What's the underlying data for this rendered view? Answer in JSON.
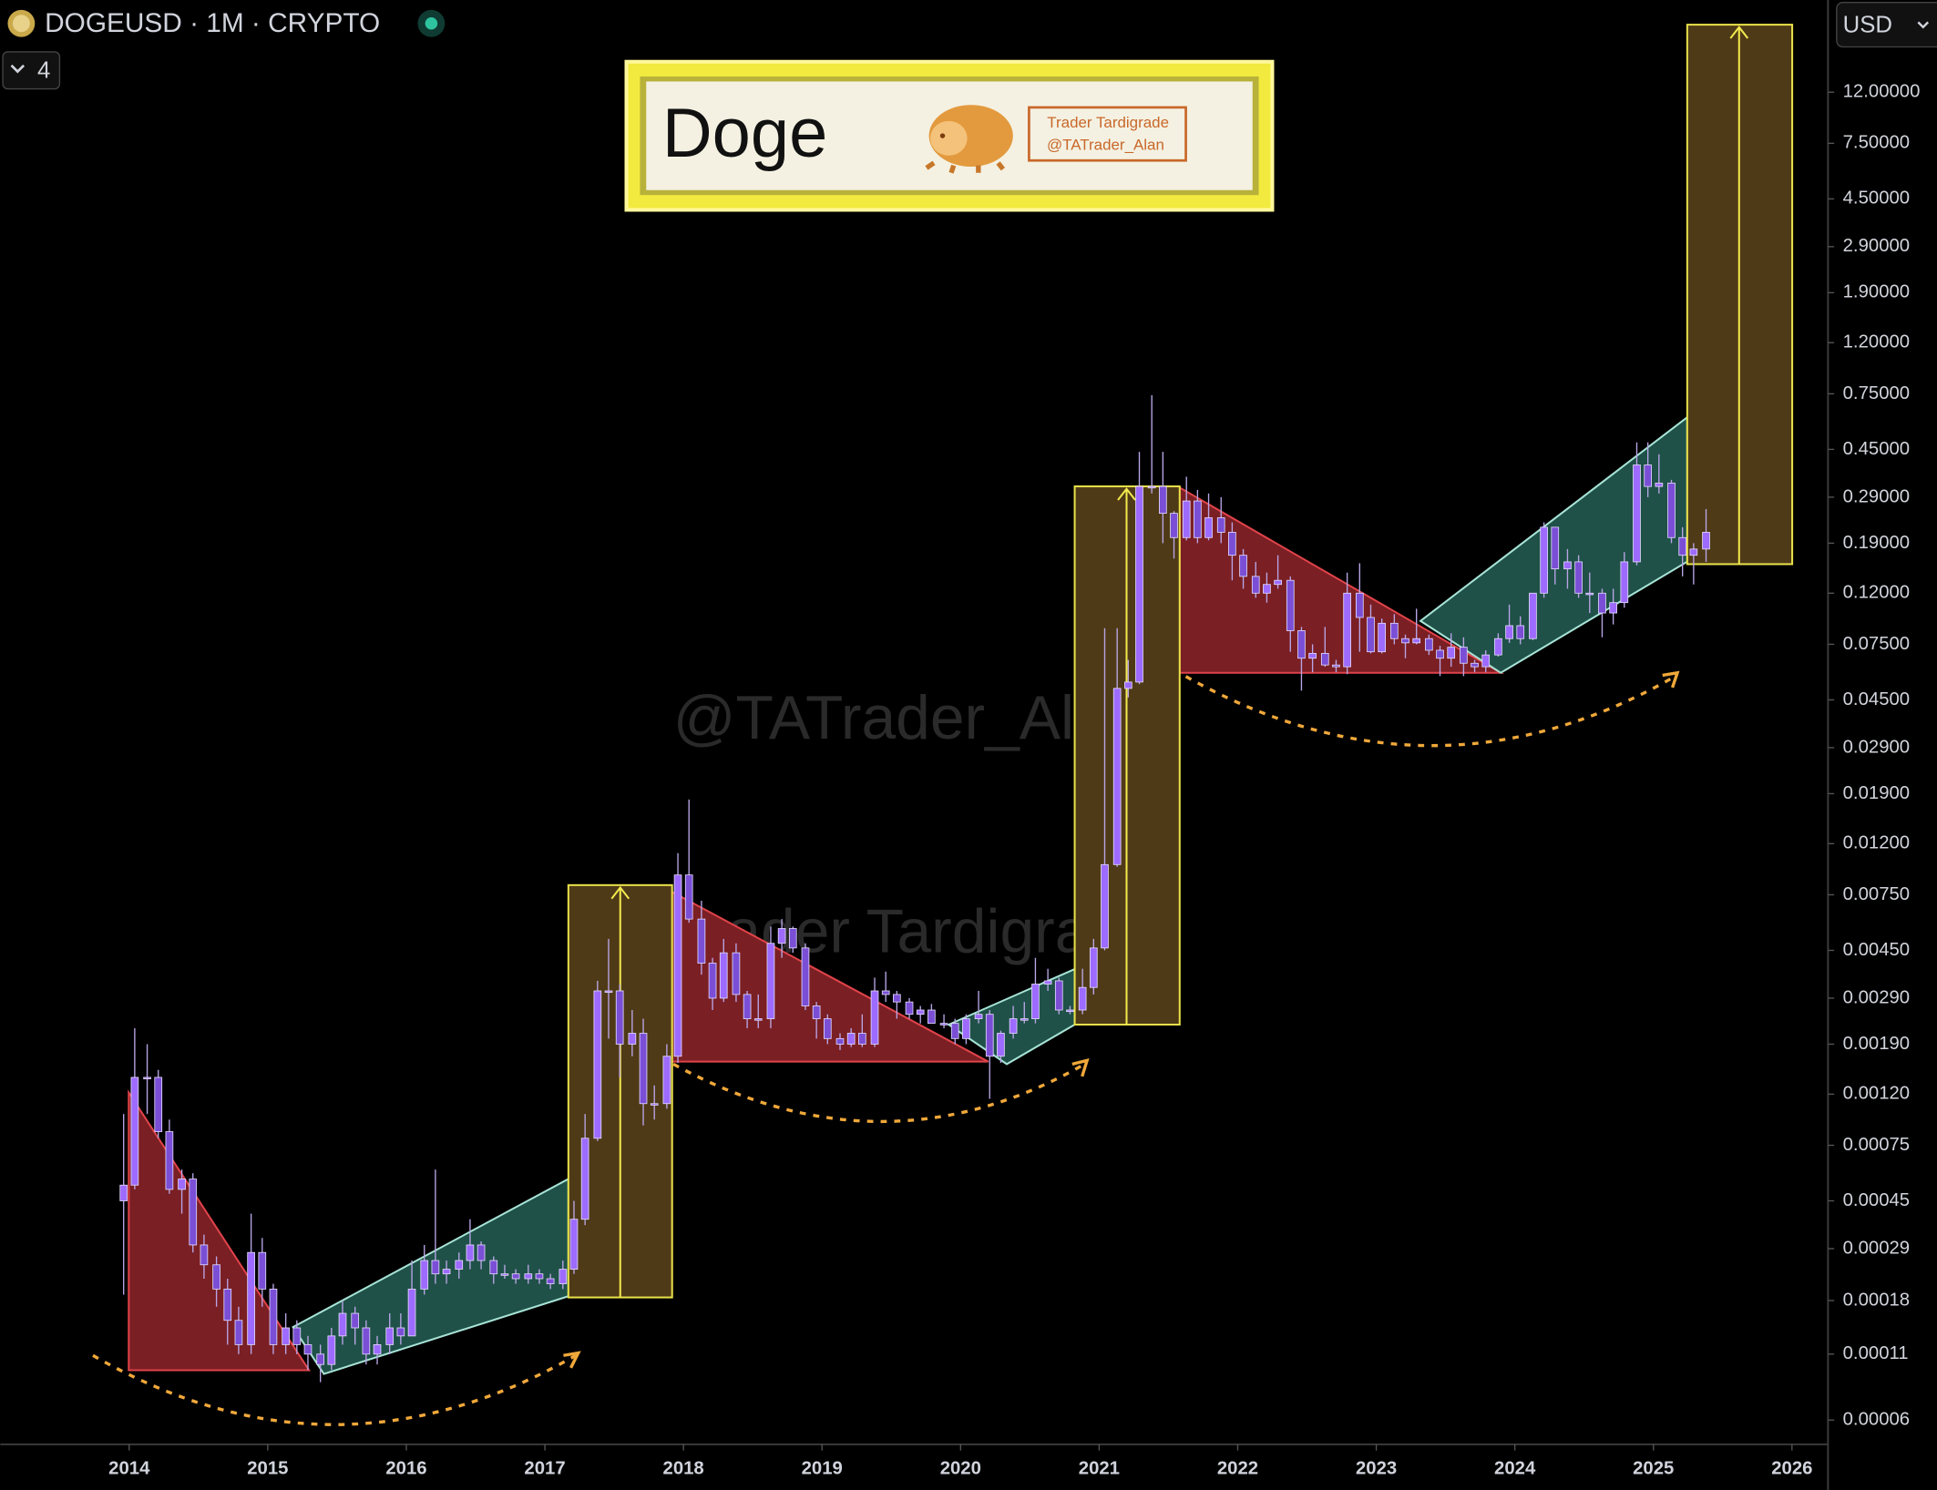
{
  "chart_data": {
    "type": "candlestick",
    "title": "DOGEUSD · 1M · CRYPTO",
    "indicator_count": 4,
    "currency": "USD",
    "log_scale": true,
    "color": "#9d6bff",
    "xlim": [
      2013.07,
      2026.26
    ],
    "xticks": [
      2014,
      2015,
      2016,
      2017,
      2018,
      2019,
      2020,
      2021,
      2022,
      2023,
      2024,
      2025,
      2026
    ],
    "ylim": [
      4.8e-05,
      28
    ],
    "yticks": [
      {
        "value": 12,
        "label": "12.00000"
      },
      {
        "value": 7.5,
        "label": "7.50000"
      },
      {
        "value": 4.5,
        "label": "4.50000"
      },
      {
        "value": 2.9,
        "label": "2.90000"
      },
      {
        "value": 1.9,
        "label": "1.90000"
      },
      {
        "value": 1.2,
        "label": "1.20000"
      },
      {
        "value": 0.75,
        "label": "0.75000"
      },
      {
        "value": 0.45,
        "label": "0.45000"
      },
      {
        "value": 0.29,
        "label": "0.29000"
      },
      {
        "value": 0.19,
        "label": "0.19000"
      },
      {
        "value": 0.12,
        "label": "0.12000"
      },
      {
        "value": 0.075,
        "label": "0.07500"
      },
      {
        "value": 0.045,
        "label": "0.04500"
      },
      {
        "value": 0.029,
        "label": "0.02900"
      },
      {
        "value": 0.019,
        "label": "0.01900"
      },
      {
        "value": 0.012,
        "label": "0.01200"
      },
      {
        "value": 0.0075,
        "label": "0.00750"
      },
      {
        "value": 0.0045,
        "label": "0.00450"
      },
      {
        "value": 0.0029,
        "label": "0.00290"
      },
      {
        "value": 0.0019,
        "label": "0.00190"
      },
      {
        "value": 0.0012,
        "label": "0.00120"
      },
      {
        "value": 0.00075,
        "label": "0.00075"
      },
      {
        "value": 0.00045,
        "label": "0.00045"
      },
      {
        "value": 0.00029,
        "label": "0.00029"
      },
      {
        "value": 0.00018,
        "label": "0.00018"
      },
      {
        "value": 0.00011,
        "label": "0.00011"
      },
      {
        "value": 6e-05,
        "label": "0.00006"
      }
    ],
    "x": [
      2013.96,
      2014.04,
      2014.13,
      2014.21,
      2014.29,
      2014.38,
      2014.46,
      2014.54,
      2014.63,
      2014.71,
      2014.79,
      2014.88,
      2014.96,
      2015.04,
      2015.13,
      2015.21,
      2015.29,
      2015.38,
      2015.46,
      2015.54,
      2015.63,
      2015.71,
      2015.79,
      2015.88,
      2015.96,
      2016.04,
      2016.13,
      2016.21,
      2016.29,
      2016.38,
      2016.46,
      2016.54,
      2016.63,
      2016.71,
      2016.79,
      2016.88,
      2016.96,
      2017.04,
      2017.13,
      2017.21,
      2017.29,
      2017.38,
      2017.46,
      2017.54,
      2017.63,
      2017.71,
      2017.79,
      2017.88,
      2017.96,
      2018.04,
      2018.13,
      2018.21,
      2018.29,
      2018.38,
      2018.46,
      2018.54,
      2018.63,
      2018.71,
      2018.79,
      2018.88,
      2018.96,
      2019.04,
      2019.13,
      2019.21,
      2019.29,
      2019.38,
      2019.46,
      2019.54,
      2019.63,
      2019.71,
      2019.79,
      2019.88,
      2019.96,
      2020.04,
      2020.13,
      2020.21,
      2020.29,
      2020.38,
      2020.46,
      2020.54,
      2020.63,
      2020.71,
      2020.79,
      2020.88,
      2020.96,
      2021.04,
      2021.13,
      2021.21,
      2021.29,
      2021.38,
      2021.46,
      2021.54,
      2021.63,
      2021.71,
      2021.79,
      2021.88,
      2021.96,
      2022.04,
      2022.13,
      2022.21,
      2022.29,
      2022.38,
      2022.46,
      2022.54,
      2022.63,
      2022.71,
      2022.79,
      2022.88,
      2022.96,
      2023.04,
      2023.13,
      2023.21,
      2023.29,
      2023.38,
      2023.46,
      2023.54,
      2023.63,
      2023.71,
      2023.79,
      2023.88,
      2023.96,
      2024.04,
      2024.13,
      2024.21,
      2024.29,
      2024.38,
      2024.46,
      2024.54,
      2024.63,
      2024.71,
      2024.79,
      2024.88,
      2024.96,
      2025.04,
      2025.13,
      2025.21,
      2025.29,
      2025.38
    ],
    "open": [
      0.00045,
      0.00052,
      0.0014,
      0.0014,
      0.00085,
      0.0005,
      0.00055,
      0.0003,
      0.00025,
      0.0002,
      0.00015,
      0.00012,
      0.00028,
      0.0002,
      0.00012,
      0.00014,
      0.00012,
      0.00011,
      0.0001,
      0.00013,
      0.00016,
      0.00014,
      0.00011,
      0.00012,
      0.00014,
      0.00013,
      0.0002,
      0.00026,
      0.00023,
      0.00024,
      0.00026,
      0.0003,
      0.00026,
      0.00023,
      0.00023,
      0.00022,
      0.00023,
      0.00022,
      0.00021,
      0.00024,
      0.00038,
      0.0008,
      0.0031,
      0.0031,
      0.0019,
      0.0021,
      0.0011,
      0.0011,
      0.0017,
      0.009,
      0.006,
      0.004,
      0.0029,
      0.0044,
      0.003,
      0.0024,
      0.0024,
      0.0048,
      0.0055,
      0.0046,
      0.0027,
      0.0024,
      0.002,
      0.0019,
      0.0021,
      0.0019,
      0.0031,
      0.003,
      0.0028,
      0.0025,
      0.0026,
      0.0023,
      0.0023,
      0.002,
      0.0024,
      0.0025,
      0.0017,
      0.0021,
      0.0024,
      0.0024,
      0.0033,
      0.0034,
      0.0026,
      0.0026,
      0.0032,
      0.0046,
      0.0099,
      0.05,
      0.053,
      0.32,
      0.32,
      0.25,
      0.2,
      0.28,
      0.2,
      0.24,
      0.21,
      0.17,
      0.14,
      0.12,
      0.13,
      0.135,
      0.085,
      0.066,
      0.069,
      0.062,
      0.061,
      0.12,
      0.096,
      0.07,
      0.091,
      0.079,
      0.076,
      0.079,
      0.071,
      0.066,
      0.073,
      0.063,
      0.061,
      0.068,
      0.079,
      0.089,
      0.079,
      0.12,
      0.22,
      0.15,
      0.16,
      0.12,
      0.12,
      0.1,
      0.11,
      0.16,
      0.39,
      0.32,
      0.33,
      0.2,
      0.17,
      0.18
    ],
    "high": [
      0.001,
      0.0022,
      0.0019,
      0.0015,
      0.00095,
      0.0006,
      0.00058,
      0.00033,
      0.00027,
      0.00022,
      0.00017,
      0.0004,
      0.00032,
      0.00021,
      0.00016,
      0.00015,
      0.00013,
      0.00012,
      0.00014,
      0.00018,
      0.00017,
      0.00015,
      0.00013,
      0.00016,
      0.00016,
      0.00026,
      0.0003,
      0.0006,
      0.00026,
      0.00028,
      0.00038,
      0.00031,
      0.00027,
      0.00025,
      0.00024,
      0.00025,
      0.00024,
      0.00023,
      0.00026,
      0.00045,
      0.001,
      0.0034,
      0.005,
      0.0033,
      0.0026,
      0.0024,
      0.0013,
      0.0019,
      0.011,
      0.018,
      0.0071,
      0.0042,
      0.005,
      0.0048,
      0.0031,
      0.003,
      0.0056,
      0.006,
      0.0056,
      0.0048,
      0.0028,
      0.0025,
      0.0021,
      0.0022,
      0.0025,
      0.0035,
      0.0037,
      0.0031,
      0.0029,
      0.0027,
      0.00275,
      0.0025,
      0.0024,
      0.0025,
      0.0031,
      0.0026,
      0.00215,
      0.0027,
      0.0028,
      0.0042,
      0.0038,
      0.0035,
      0.0027,
      0.0038,
      0.005,
      0.087,
      0.087,
      0.065,
      0.44,
      0.74,
      0.44,
      0.255,
      0.35,
      0.31,
      0.3,
      0.29,
      0.23,
      0.18,
      0.16,
      0.145,
      0.17,
      0.14,
      0.088,
      0.075,
      0.088,
      0.065,
      0.145,
      0.158,
      0.108,
      0.095,
      0.099,
      0.082,
      0.104,
      0.082,
      0.074,
      0.083,
      0.08,
      0.065,
      0.071,
      0.083,
      0.108,
      0.097,
      0.12,
      0.23,
      0.22,
      0.18,
      0.17,
      0.145,
      0.125,
      0.125,
      0.175,
      0.48,
      0.48,
      0.43,
      0.34,
      0.22,
      0.19,
      0.26
    ],
    "low": [
      0.00019,
      0.0005,
      0.001,
      0.0008,
      0.00048,
      0.0004,
      0.00028,
      0.00022,
      0.00017,
      0.00012,
      0.00011,
      0.00011,
      0.00017,
      0.00011,
      0.00011,
      0.00011,
      9.5e-05,
      8.5e-05,
      9.5e-05,
      0.00012,
      0.00012,
      0.0001,
      0.0001,
      0.00011,
      0.00012,
      0.00013,
      0.00019,
      0.00021,
      0.00021,
      0.00022,
      0.00024,
      0.00024,
      0.00021,
      0.00022,
      0.00021,
      0.00021,
      0.00021,
      0.0002,
      0.0002,
      0.00023,
      0.00036,
      0.00078,
      0.002,
      0.0014,
      0.0017,
      0.0009,
      0.00095,
      0.00105,
      0.0016,
      0.0058,
      0.0036,
      0.0026,
      0.0028,
      0.0028,
      0.0022,
      0.0022,
      0.0022,
      0.0042,
      0.0044,
      0.0026,
      0.002,
      0.0019,
      0.0018,
      0.00185,
      0.00185,
      0.00185,
      0.0028,
      0.0024,
      0.0024,
      0.0023,
      0.0023,
      0.0022,
      0.0019,
      0.0019,
      0.0023,
      0.00115,
      0.0016,
      0.002,
      0.0023,
      0.0023,
      0.0031,
      0.0025,
      0.0025,
      0.0025,
      0.003,
      0.0045,
      0.0097,
      0.046,
      0.052,
      0.3,
      0.19,
      0.165,
      0.195,
      0.19,
      0.195,
      0.19,
      0.135,
      0.125,
      0.115,
      0.11,
      0.125,
      0.07,
      0.049,
      0.058,
      0.061,
      0.058,
      0.057,
      0.07,
      0.069,
      0.069,
      0.075,
      0.066,
      0.075,
      0.068,
      0.056,
      0.061,
      0.056,
      0.058,
      0.058,
      0.067,
      0.076,
      0.075,
      0.078,
      0.115,
      0.13,
      0.125,
      0.115,
      0.1,
      0.08,
      0.09,
      0.105,
      0.155,
      0.29,
      0.3,
      0.19,
      0.14,
      0.13,
      0.16
    ],
    "close": [
      0.00052,
      0.0014,
      0.0014,
      0.00085,
      0.0005,
      0.00055,
      0.0003,
      0.00025,
      0.0002,
      0.00015,
      0.00012,
      0.00028,
      0.0002,
      0.00012,
      0.00014,
      0.00012,
      0.00011,
      0.0001,
      0.00013,
      0.00016,
      0.00014,
      0.00011,
      0.00012,
      0.00014,
      0.00013,
      0.0002,
      0.00026,
      0.00023,
      0.00024,
      0.00026,
      0.0003,
      0.00026,
      0.00023,
      0.00023,
      0.00022,
      0.00023,
      0.00022,
      0.00021,
      0.00024,
      0.00038,
      0.0008,
      0.0031,
      0.0031,
      0.0019,
      0.0021,
      0.0011,
      0.0011,
      0.0017,
      0.009,
      0.006,
      0.004,
      0.0029,
      0.0044,
      0.003,
      0.0024,
      0.0024,
      0.0048,
      0.0055,
      0.0046,
      0.0027,
      0.0024,
      0.002,
      0.0019,
      0.0021,
      0.0019,
      0.0031,
      0.003,
      0.0028,
      0.0025,
      0.0026,
      0.0023,
      0.0023,
      0.002,
      0.0024,
      0.0025,
      0.0017,
      0.0021,
      0.0024,
      0.0024,
      0.0033,
      0.0034,
      0.0026,
      0.0026,
      0.0032,
      0.0046,
      0.0099,
      0.05,
      0.053,
      0.32,
      0.32,
      0.25,
      0.2,
      0.28,
      0.2,
      0.24,
      0.21,
      0.17,
      0.14,
      0.12,
      0.13,
      0.135,
      0.085,
      0.066,
      0.069,
      0.062,
      0.061,
      0.12,
      0.096,
      0.07,
      0.091,
      0.079,
      0.076,
      0.079,
      0.071,
      0.066,
      0.073,
      0.063,
      0.061,
      0.068,
      0.079,
      0.089,
      0.079,
      0.12,
      0.22,
      0.15,
      0.16,
      0.12,
      0.12,
      0.1,
      0.11,
      0.16,
      0.39,
      0.32,
      0.33,
      0.2,
      0.17,
      0.18,
      0.21
    ]
  },
  "banner": {
    "title": "Doge",
    "author": "Trader Tardigrade",
    "handle": "@TATrader_Alan"
  },
  "watermarks": [
    "@TATrader_Alan",
    "Trader Tardigrade"
  ]
}
